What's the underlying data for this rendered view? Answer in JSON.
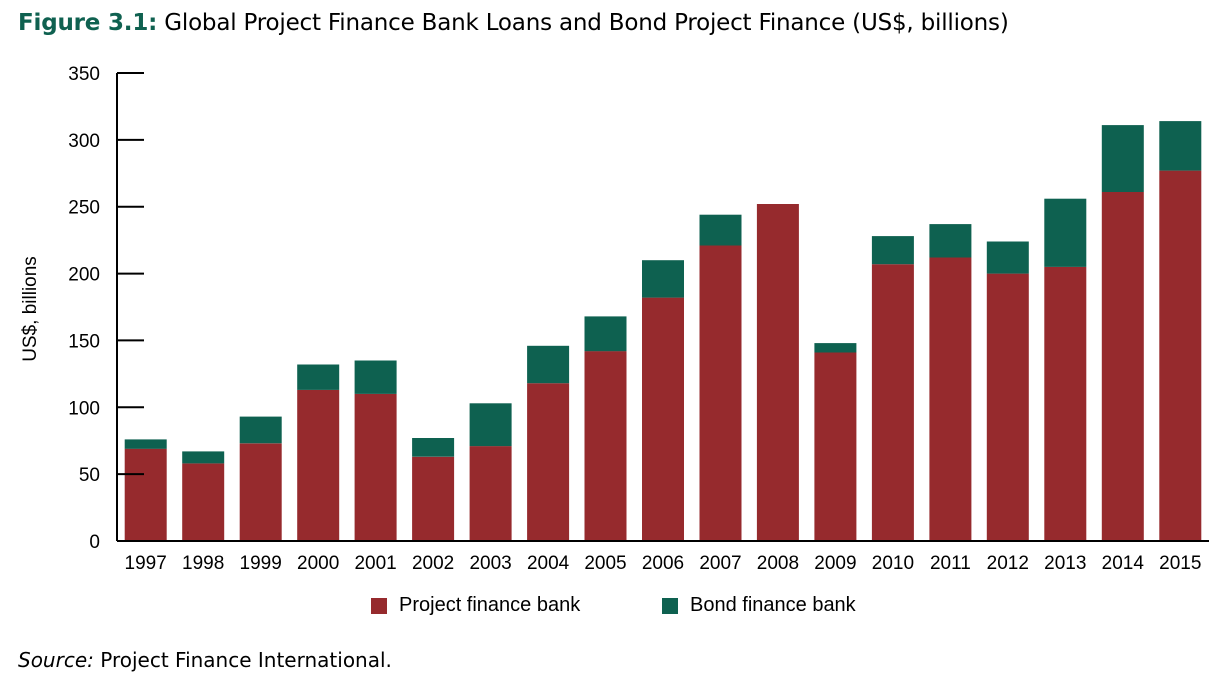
{
  "figure": {
    "number": "Figure 3.1:",
    "title": "Global Project Finance Bank Loans and Bond Project Finance (US$, billions)"
  },
  "chart_data": {
    "type": "bar",
    "stacked": true,
    "title": "Global Project Finance Bank Loans and Bond Project Finance (US$, billions)",
    "xlabel": "",
    "ylabel": "US$, billions",
    "ylim": [
      0,
      350
    ],
    "yticks": [
      0,
      50,
      100,
      150,
      200,
      250,
      300,
      350
    ],
    "grid": false,
    "legend_position": "bottom",
    "categories": [
      "1997",
      "1998",
      "1999",
      "2000",
      "2001",
      "2002",
      "2003",
      "2004",
      "2005",
      "2006",
      "2007",
      "2008",
      "2009",
      "2010",
      "2011",
      "2012",
      "2013",
      "2014",
      "2015"
    ],
    "series": [
      {
        "name": "Project finance bank",
        "color": "#962a2d",
        "values": [
          69,
          58,
          73,
          113,
          110,
          63,
          71,
          118,
          142,
          182,
          221,
          252,
          141,
          207,
          212,
          200,
          205,
          261,
          277
        ]
      },
      {
        "name": "Bond finance bank",
        "color": "#0e6150",
        "values": [
          7,
          9,
          20,
          19,
          25,
          14,
          32,
          28,
          26,
          28,
          23,
          0,
          7,
          21,
          25,
          24,
          51,
          50,
          37
        ]
      }
    ]
  },
  "source": {
    "label": "Source:",
    "text": "Project Finance International."
  }
}
